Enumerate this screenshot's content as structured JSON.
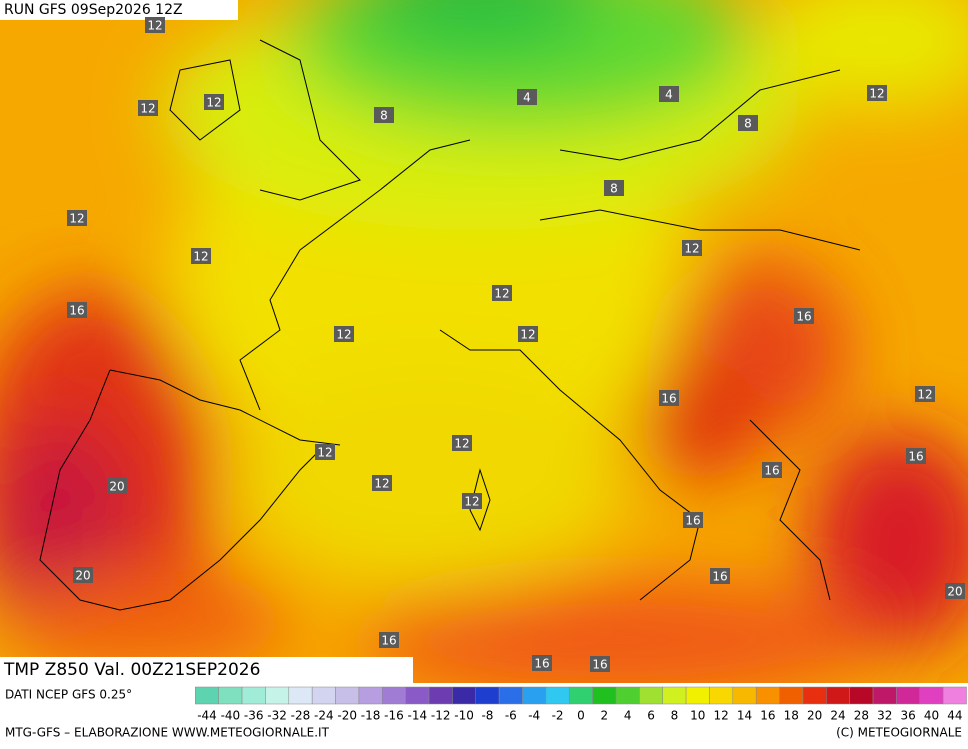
{
  "header": {
    "run": "RUN GFS 09Sep2026 12Z",
    "title": "TMP Z850 Val. 00Z21SEP2026"
  },
  "map": {
    "contour_labels": [
      12,
      12,
      12,
      8,
      4,
      4,
      8,
      12,
      8,
      12,
      12,
      12,
      12,
      16,
      12,
      12,
      16,
      16,
      12,
      12,
      12,
      16,
      16,
      20,
      12,
      12,
      16,
      20,
      16,
      20,
      16,
      16,
      16
    ]
  },
  "legend": {
    "source": "DATI NCEP GFS 0.25°",
    "ticks": [
      -44,
      -40,
      -36,
      -32,
      -28,
      -24,
      -20,
      -18,
      -16,
      -14,
      -12,
      -10,
      -8,
      -6,
      -4,
      -2,
      0,
      2,
      4,
      6,
      8,
      10,
      12,
      14,
      16,
      18,
      20,
      24,
      28,
      32,
      36,
      40,
      44
    ],
    "colors": [
      "#5ed3b0",
      "#7fe0c0",
      "#a0ecd6",
      "#c6f3e8",
      "#dce8f6",
      "#d2d4f0",
      "#c8bfe8",
      "#b79ee0",
      "#a07cd4",
      "#8a5ac6",
      "#6c3cb0",
      "#3a2aa8",
      "#1e3ed0",
      "#2a6ee8",
      "#2aa0f0",
      "#30c8f0",
      "#30d070",
      "#20c020",
      "#50d030",
      "#a0e030",
      "#d0f020",
      "#f0f000",
      "#f8d800",
      "#f8b800",
      "#f89000",
      "#f06000",
      "#e83010",
      "#d01818",
      "#b80828",
      "#c01868",
      "#d02898",
      "#e040c0",
      "#f080e0"
    ]
  },
  "footer": {
    "left": "MTG-GFS – ELABORAZIONE WWW.METEOGIORNALE.IT",
    "right": "(C) METEOGIORNALE"
  }
}
